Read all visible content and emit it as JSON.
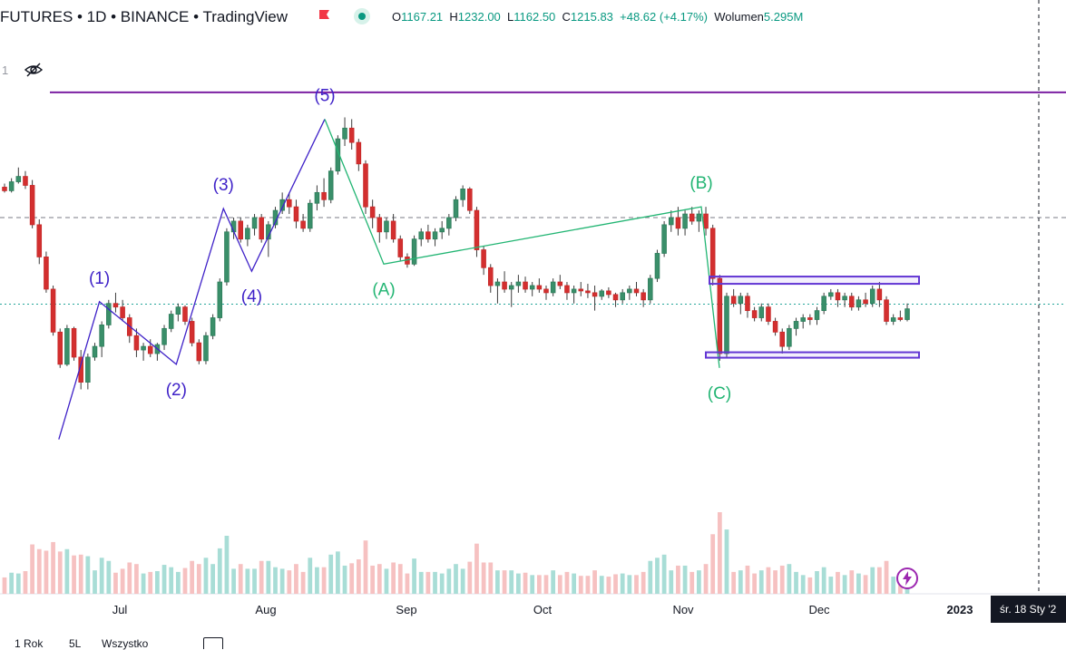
{
  "header": {
    "symbol_text": "FUTURES • 1D • BINANCE • TradingView",
    "ohlc": {
      "o_label": "O",
      "o_value": "1167.21",
      "h_label": "H",
      "h_value": "1232.00",
      "l_label": "L",
      "l_value": "1162.50",
      "c_label": "C",
      "c_value": "1215.83",
      "change": "+48.62 (+4.17%)",
      "volume_label": "Wolumen",
      "volume_value": "5.295M"
    },
    "legend_index": "1"
  },
  "chart_data": {
    "type": "candlestick",
    "title": "",
    "xlabel": "",
    "ylabel": "",
    "x_ticks": [
      "Jul",
      "Aug",
      "Sep",
      "Oct",
      "Nov",
      "Dec",
      "2023"
    ],
    "y_range": [
      870,
      2010
    ],
    "grid": false,
    "price_lines": [
      {
        "name": "resistance",
        "value": 1980,
        "color": "#7b1fa2"
      },
      {
        "name": "dashed-level",
        "value": 1630,
        "color": "#787b86"
      },
      {
        "name": "dotted-level",
        "value": 1388,
        "color": "#26a69a"
      }
    ],
    "waves": {
      "impulse": {
        "color": "#3f22c8",
        "points": [
          {
            "label": "",
            "date": "2022-06-13",
            "price": 1010
          },
          {
            "label": "(1)",
            "date": "2022-06-25",
            "price": 1395
          },
          {
            "label": "(2)",
            "date": "2022-07-13",
            "price": 1220
          },
          {
            "label": "(3)",
            "date": "2022-07-23",
            "price": 1655
          },
          {
            "label": "(4)",
            "date": "2022-07-29",
            "price": 1480
          },
          {
            "label": "(5)",
            "date": "2022-08-14",
            "price": 1905
          }
        ]
      },
      "correction": {
        "color": "#22b573",
        "points": [
          {
            "label": "",
            "date": "2022-08-14",
            "price": 1905
          },
          {
            "label": "(A)",
            "date": "2022-08-27",
            "price": 1500
          },
          {
            "label": "(B)",
            "date": "2022-11-05",
            "price": 1660
          },
          {
            "label": "(C)",
            "date": "2022-11-09",
            "price": 1210
          }
        ]
      }
    },
    "range_box": {
      "date_from": "2022-11-08",
      "date_to": "2022-12-21",
      "top": 1455,
      "bottom": 1246,
      "color": "#6236d4"
    },
    "candles": [
      [
        1715,
        1725,
        1700,
        1705
      ],
      [
        1705,
        1740,
        1700,
        1730
      ],
      [
        1730,
        1770,
        1725,
        1745
      ],
      [
        1745,
        1760,
        1710,
        1720
      ],
      [
        1720,
        1735,
        1600,
        1610
      ],
      [
        1610,
        1625,
        1500,
        1520
      ],
      [
        1520,
        1535,
        1420,
        1430
      ],
      [
        1430,
        1440,
        1300,
        1310
      ],
      [
        1310,
        1320,
        1210,
        1220
      ],
      [
        1220,
        1330,
        1215,
        1320
      ],
      [
        1320,
        1325,
        1230,
        1240
      ],
      [
        1240,
        1260,
        1150,
        1170
      ],
      [
        1170,
        1250,
        1150,
        1240
      ],
      [
        1240,
        1280,
        1230,
        1270
      ],
      [
        1270,
        1340,
        1240,
        1330
      ],
      [
        1330,
        1400,
        1320,
        1390
      ],
      [
        1390,
        1420,
        1365,
        1380
      ],
      [
        1380,
        1400,
        1340,
        1350
      ],
      [
        1350,
        1360,
        1280,
        1300
      ],
      [
        1300,
        1320,
        1240,
        1260
      ],
      [
        1260,
        1280,
        1230,
        1270
      ],
      [
        1270,
        1290,
        1240,
        1250
      ],
      [
        1250,
        1280,
        1230,
        1275
      ],
      [
        1275,
        1330,
        1260,
        1320
      ],
      [
        1320,
        1370,
        1310,
        1360
      ],
      [
        1360,
        1390,
        1340,
        1380
      ],
      [
        1380,
        1385,
        1330,
        1340
      ],
      [
        1340,
        1350,
        1270,
        1280
      ],
      [
        1280,
        1290,
        1220,
        1230
      ],
      [
        1230,
        1310,
        1220,
        1300
      ],
      [
        1300,
        1360,
        1290,
        1350
      ],
      [
        1350,
        1460,
        1340,
        1450
      ],
      [
        1450,
        1600,
        1440,
        1590
      ],
      [
        1590,
        1630,
        1570,
        1620
      ],
      [
        1620,
        1630,
        1560,
        1570
      ],
      [
        1570,
        1610,
        1550,
        1600
      ],
      [
        1600,
        1640,
        1580,
        1630
      ],
      [
        1630,
        1640,
        1560,
        1570
      ],
      [
        1570,
        1620,
        1520,
        1610
      ],
      [
        1610,
        1660,
        1600,
        1650
      ],
      [
        1650,
        1700,
        1640,
        1680
      ],
      [
        1680,
        1700,
        1640,
        1660
      ],
      [
        1660,
        1680,
        1600,
        1620
      ],
      [
        1620,
        1640,
        1590,
        1600
      ],
      [
        1600,
        1680,
        1590,
        1670
      ],
      [
        1670,
        1720,
        1650,
        1700
      ],
      [
        1700,
        1740,
        1660,
        1680
      ],
      [
        1680,
        1770,
        1670,
        1760
      ],
      [
        1760,
        1860,
        1750,
        1850
      ],
      [
        1850,
        1910,
        1830,
        1880
      ],
      [
        1880,
        1905,
        1820,
        1840
      ],
      [
        1840,
        1850,
        1760,
        1780
      ],
      [
        1780,
        1790,
        1640,
        1660
      ],
      [
        1660,
        1680,
        1600,
        1630
      ],
      [
        1630,
        1640,
        1560,
        1590
      ],
      [
        1590,
        1630,
        1570,
        1620
      ],
      [
        1620,
        1640,
        1560,
        1570
      ],
      [
        1570,
        1580,
        1510,
        1520
      ],
      [
        1520,
        1530,
        1490,
        1500
      ],
      [
        1500,
        1580,
        1495,
        1570
      ],
      [
        1570,
        1600,
        1550,
        1590
      ],
      [
        1590,
        1610,
        1560,
        1570
      ],
      [
        1570,
        1600,
        1550,
        1590
      ],
      [
        1590,
        1620,
        1570,
        1600
      ],
      [
        1600,
        1640,
        1580,
        1630
      ],
      [
        1630,
        1690,
        1620,
        1680
      ],
      [
        1680,
        1720,
        1660,
        1710
      ],
      [
        1710,
        1715,
        1640,
        1650
      ],
      [
        1650,
        1660,
        1520,
        1540
      ],
      [
        1540,
        1550,
        1470,
        1490
      ],
      [
        1490,
        1500,
        1420,
        1440
      ],
      [
        1440,
        1460,
        1390,
        1450
      ],
      [
        1450,
        1480,
        1420,
        1430
      ],
      [
        1430,
        1450,
        1380,
        1440
      ],
      [
        1440,
        1470,
        1420,
        1450
      ],
      [
        1450,
        1465,
        1420,
        1430
      ],
      [
        1430,
        1450,
        1410,
        1440
      ],
      [
        1440,
        1460,
        1420,
        1430
      ],
      [
        1430,
        1440,
        1400,
        1420
      ],
      [
        1420,
        1460,
        1410,
        1450
      ],
      [
        1450,
        1470,
        1430,
        1440
      ],
      [
        1440,
        1450,
        1400,
        1420
      ],
      [
        1420,
        1440,
        1390,
        1430
      ],
      [
        1430,
        1450,
        1410,
        1425
      ],
      [
        1425,
        1445,
        1405,
        1420
      ],
      [
        1420,
        1440,
        1370,
        1410
      ],
      [
        1410,
        1430,
        1400,
        1425
      ],
      [
        1425,
        1435,
        1405,
        1415
      ],
      [
        1415,
        1420,
        1380,
        1400
      ],
      [
        1400,
        1430,
        1390,
        1420
      ],
      [
        1420,
        1440,
        1400,
        1430
      ],
      [
        1430,
        1450,
        1410,
        1420
      ],
      [
        1420,
        1430,
        1380,
        1400
      ],
      [
        1400,
        1470,
        1390,
        1460
      ],
      [
        1460,
        1540,
        1450,
        1530
      ],
      [
        1530,
        1620,
        1520,
        1610
      ],
      [
        1610,
        1650,
        1590,
        1630
      ],
      [
        1630,
        1660,
        1580,
        1600
      ],
      [
        1600,
        1650,
        1580,
        1640
      ],
      [
        1640,
        1660,
        1610,
        1620
      ],
      [
        1620,
        1650,
        1590,
        1640
      ],
      [
        1640,
        1660,
        1580,
        1600
      ],
      [
        1600,
        1610,
        1440,
        1460
      ],
      [
        1460,
        1470,
        1230,
        1250
      ],
      [
        1250,
        1420,
        1240,
        1410
      ],
      [
        1410,
        1430,
        1380,
        1390
      ],
      [
        1390,
        1420,
        1360,
        1410
      ],
      [
        1410,
        1420,
        1350,
        1370
      ],
      [
        1370,
        1380,
        1340,
        1350
      ],
      [
        1350,
        1390,
        1340,
        1380
      ],
      [
        1380,
        1390,
        1330,
        1340
      ],
      [
        1340,
        1350,
        1300,
        1310
      ],
      [
        1310,
        1320,
        1250,
        1270
      ],
      [
        1270,
        1330,
        1260,
        1320
      ],
      [
        1320,
        1350,
        1300,
        1340
      ],
      [
        1340,
        1360,
        1320,
        1350
      ],
      [
        1350,
        1360,
        1330,
        1345
      ],
      [
        1345,
        1380,
        1330,
        1370
      ],
      [
        1370,
        1420,
        1360,
        1410
      ],
      [
        1410,
        1430,
        1400,
        1420
      ],
      [
        1420,
        1430,
        1380,
        1400
      ],
      [
        1400,
        1420,
        1380,
        1410
      ],
      [
        1410,
        1420,
        1370,
        1380
      ],
      [
        1380,
        1410,
        1370,
        1400
      ],
      [
        1400,
        1420,
        1380,
        1390
      ],
      [
        1390,
        1440,
        1380,
        1430
      ],
      [
        1430,
        1450,
        1380,
        1400
      ],
      [
        1400,
        1410,
        1330,
        1340
      ],
      [
        1340,
        1360,
        1330,
        1350
      ],
      [
        1350,
        1370,
        1340,
        1345
      ],
      [
        1345,
        1390,
        1340,
        1375
      ]
    ],
    "volume_colors": {
      "up": "#a8ddd6",
      "down": "#f6c1c1"
    }
  },
  "bottom_bar": {
    "range_1y": "1 Rok",
    "range_5y": "5L",
    "range_all": "Wszystko"
  },
  "date_badge": "śr. 18 Sty '2",
  "icons": {
    "flag": "flag-icon",
    "dot": "live-dot-icon",
    "eye": "eye-off-icon",
    "bolt": "lightning-icon",
    "calendar": "calendar-icon"
  }
}
